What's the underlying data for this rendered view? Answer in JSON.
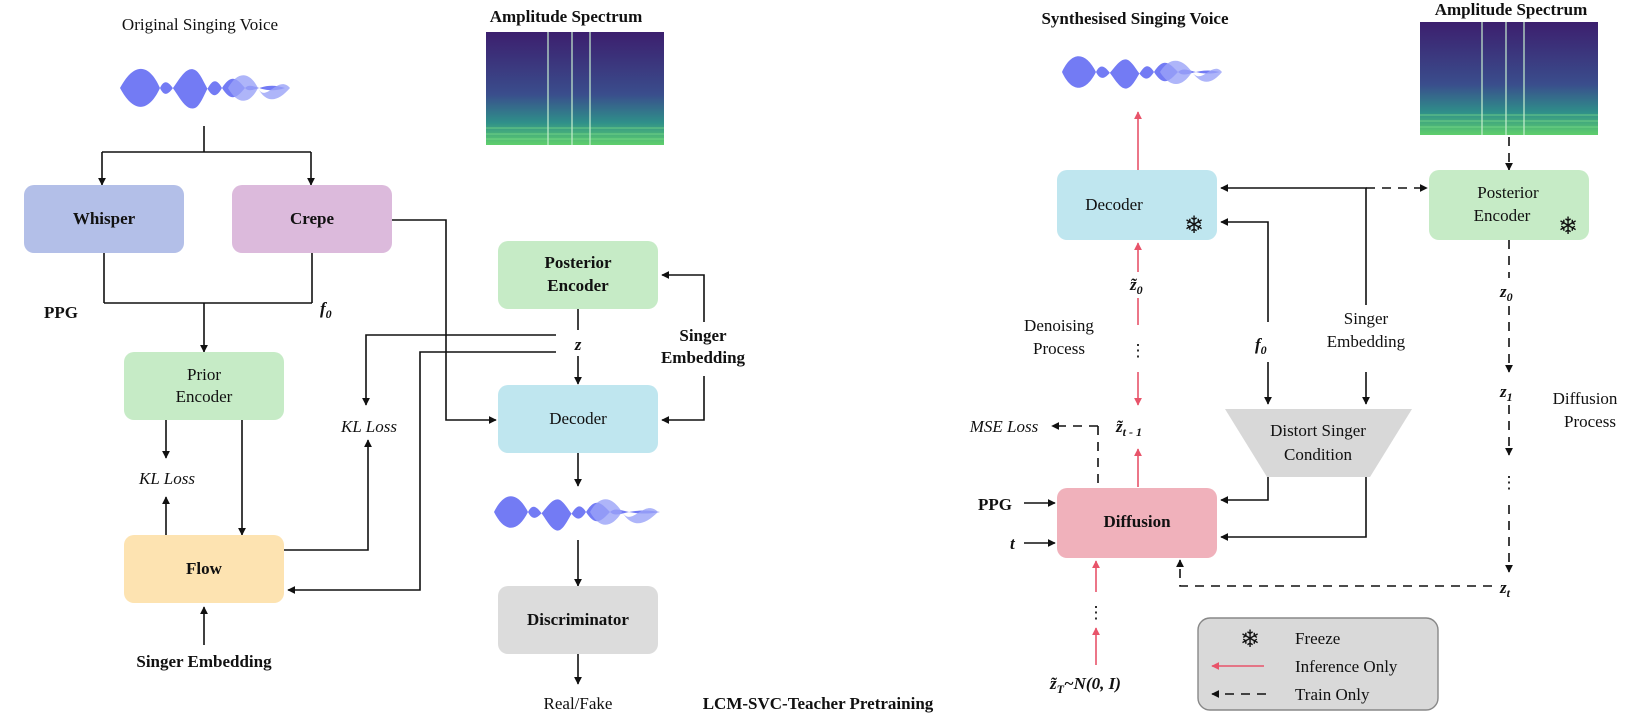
{
  "colors": {
    "whisper": "#b3bfe8",
    "crepe": "#dcbadc",
    "green": "#c6ebc6",
    "cyan": "#bfe6ef",
    "flow": "#fde3b1",
    "discriminator": "#dcdcdc",
    "diffusion": "#f0b1bb",
    "distort": "#d8d8d8",
    "waveform": "#5b64f2",
    "inference_arrow": "#e8546a",
    "legend_bg": "#d9d9d9"
  },
  "left": {
    "original_voice": "Original Singing Voice",
    "amplitude_spectrum": "Amplitude Spectrum",
    "whisper": "Whisper",
    "crepe": "Crepe",
    "ppg": "PPG",
    "f0": "f",
    "f0_sub": "0",
    "prior_encoder_1": "Prior",
    "prior_encoder_2": "Encoder",
    "kl_loss_1": "KL Loss",
    "kl_loss_2": "KL Loss",
    "flow": "Flow",
    "singer_embedding": "Singer Embedding",
    "posterior_encoder_1": "Posterior",
    "posterior_encoder_2": "Encoder",
    "z": "z",
    "singer_embedding_1": "Singer",
    "singer_embedding_2": "Embedding",
    "decoder": "Decoder",
    "discriminator": "Discriminator",
    "real_fake": "Real/Fake",
    "caption": "LCM-SVC-Teacher Pretraining"
  },
  "right": {
    "synth_voice": "Synthesised Singing Voice",
    "amplitude_spectrum": "Amplitude Spectrum",
    "decoder": "Decoder",
    "posterior_encoder_1": "Posterior",
    "posterior_encoder_2": "Encoder",
    "z0_tilde": "z̃",
    "z0_sub": "0",
    "dots": "⋮",
    "denoising_1": "Denoising",
    "denoising_2": "Process",
    "f0": "f",
    "f0_sub": "0",
    "singer_1": "Singer",
    "singer_2": "Embedding",
    "z0": "z",
    "z0_sub2": "0",
    "z1": "z",
    "z1_sub": "1",
    "diffusion_proc_1": "Diffusion",
    "diffusion_proc_2": "Process",
    "mse_loss": "MSE Loss",
    "zt1": "z̃",
    "zt1_sub": "t - 1",
    "distort_1": "Distort Singer",
    "distort_2": "Condition",
    "ppg": "PPG",
    "t": "t",
    "diffusion": "Diffusion",
    "zt": "z",
    "zt_sub": "t",
    "zT": "z̃",
    "zT_sub": "T",
    "zT_rest": "~N(0, I)",
    "legend_freeze": "Freeze",
    "legend_inference": "Inference Only",
    "legend_train": "Train Only"
  }
}
